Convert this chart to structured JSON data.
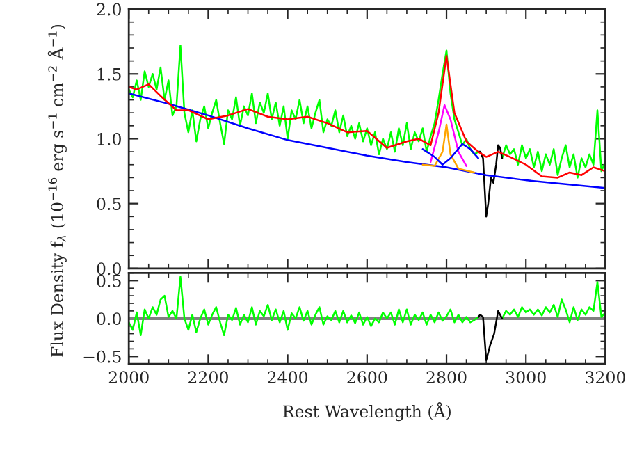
{
  "chart_data": [
    {
      "type": "line",
      "ylabel": "Flux Density f$_{λ}$ (10$^{−16}$ erg s$^{−1}$ cm$^{−2}$ Å$^{−1}$)",
      "xlim": [
        2000,
        3200
      ],
      "xticks": [
        2000,
        2200,
        2400,
        2600,
        2800,
        3000,
        3200
      ],
      "ylim": [
        0,
        2
      ],
      "yticks": [
        {
          "value": 0,
          "label": "0.0"
        },
        {
          "value": 0.5,
          "label": "0.5"
        },
        {
          "value": 1,
          "label": "1.0"
        },
        {
          "value": 1.5,
          "label": "1.5"
        },
        {
          "value": 2,
          "label": "2.0"
        }
      ],
      "tick_labels": "y",
      "grid": false,
      "legend": false,
      "series": [
        {
          "color": "#00ff00",
          "x": [
            2000,
            2010,
            2020,
            2030,
            2040,
            2050,
            2060,
            2070,
            2080,
            2090,
            2100,
            2110,
            2120,
            2130,
            2140,
            2150,
            2160,
            2170,
            2180,
            2190,
            2200,
            2210,
            2220,
            2230,
            2240,
            2250,
            2260,
            2270,
            2280,
            2290,
            2300,
            2310,
            2320,
            2330,
            2340,
            2350,
            2360,
            2370,
            2380,
            2390,
            2400,
            2410,
            2420,
            2430,
            2440,
            2450,
            2460,
            2470,
            2480,
            2490,
            2500,
            2510,
            2520,
            2530,
            2540,
            2550,
            2560,
            2570,
            2580,
            2590,
            2600,
            2610,
            2620,
            2630,
            2640,
            2650,
            2660,
            2670,
            2680,
            2690,
            2700,
            2710,
            2720,
            2730,
            2740,
            2750,
            2760,
            2770,
            2780,
            2790,
            2800,
            2810,
            2820,
            2830,
            2840,
            2850,
            2860,
            2870,
            2880
          ],
          "values": [
            1.38,
            1.32,
            1.45,
            1.3,
            1.52,
            1.4,
            1.5,
            1.38,
            1.55,
            1.3,
            1.45,
            1.18,
            1.25,
            1.72,
            1.2,
            1.05,
            1.22,
            0.98,
            1.15,
            1.25,
            1.08,
            1.2,
            1.3,
            1.12,
            0.96,
            1.22,
            1.15,
            1.32,
            1.1,
            1.25,
            1.18,
            1.35,
            1.12,
            1.28,
            1.2,
            1.35,
            1.15,
            1.28,
            1.1,
            1.25,
            1.0,
            1.22,
            1.15,
            1.3,
            1.12,
            1.25,
            1.08,
            1.2,
            1.3,
            1.05,
            1.15,
            1.1,
            1.22,
            1.05,
            1.18,
            1.02,
            1.1,
            1.0,
            1.12,
            0.98,
            1.08,
            0.95,
            1.05,
            0.88,
            1.0,
            0.92,
            1.05,
            0.9,
            1.08,
            0.95,
            1.12,
            0.92,
            1.05,
            0.98,
            1.08,
            0.9,
            1.02,
            1.12,
            1.3,
            1.5,
            1.68,
            1.35,
            1.15,
            1.05,
            0.95,
            1.0,
            0.92,
            0.88,
            0.9
          ]
        },
        {
          "color": "#00ff00",
          "x": [
            2940,
            2950,
            2960,
            2970,
            2980,
            2990,
            3000,
            3010,
            3020,
            3030,
            3040,
            3050,
            3060,
            3070,
            3080,
            3090,
            3100,
            3110,
            3120,
            3130,
            3140,
            3150,
            3160,
            3170,
            3180,
            3190,
            3200
          ],
          "values": [
            0.85,
            0.95,
            0.88,
            0.92,
            0.8,
            0.95,
            0.85,
            0.92,
            0.78,
            0.9,
            0.75,
            0.88,
            0.8,
            0.92,
            0.72,
            0.85,
            0.95,
            0.78,
            0.88,
            0.7,
            0.85,
            0.78,
            0.88,
            0.8,
            1.22,
            0.75,
            0.82
          ]
        },
        {
          "color": "#000000",
          "x": [
            2880,
            2885,
            2892,
            2900,
            2905,
            2912,
            2918,
            2925,
            2930,
            2935,
            2940
          ],
          "values": [
            0.9,
            0.9,
            0.85,
            0.4,
            0.5,
            0.7,
            0.66,
            0.8,
            0.95,
            0.93,
            0.85
          ]
        },
        {
          "color": "#0000ff",
          "x": [
            2000,
            2100,
            2200,
            2300,
            2400,
            2500,
            2600,
            2700,
            2800,
            2900,
            3000,
            3100,
            3200
          ],
          "values": [
            1.35,
            1.27,
            1.18,
            1.08,
            0.99,
            0.93,
            0.87,
            0.82,
            0.78,
            0.72,
            0.68,
            0.65,
            0.62
          ]
        },
        {
          "color": "#ffa500",
          "x": [
            2740,
            2770,
            2790,
            2800,
            2810,
            2830,
            2870
          ],
          "values": [
            0.8,
            0.79,
            0.9,
            1.11,
            0.88,
            0.77,
            0.74
          ]
        },
        {
          "color": "#ff00ff",
          "x": [
            2760,
            2780,
            2795,
            2810,
            2830,
            2850
          ],
          "values": [
            0.82,
            1.05,
            1.26,
            1.15,
            0.9,
            0.79
          ]
        },
        {
          "color": "#0000ff",
          "x": [
            2740,
            2770,
            2790,
            2810,
            2840,
            2860,
            2880
          ],
          "values": [
            0.92,
            0.86,
            0.8,
            0.85,
            0.96,
            0.92,
            0.85
          ]
        },
        {
          "color": "#ff0000",
          "x": [
            2000,
            2020,
            2050,
            2080,
            2120,
            2150,
            2200,
            2250,
            2300,
            2350,
            2400,
            2450,
            2500,
            2550,
            2600,
            2650,
            2700,
            2730,
            2760,
            2780,
            2800,
            2820,
            2850,
            2880,
            2900,
            2930,
            2960,
            3000,
            3040,
            3080,
            3110,
            3140,
            3170,
            3200
          ],
          "values": [
            1.4,
            1.38,
            1.42,
            1.33,
            1.22,
            1.22,
            1.15,
            1.18,
            1.23,
            1.17,
            1.15,
            1.17,
            1.12,
            1.05,
            1.06,
            0.93,
            0.98,
            1.0,
            0.95,
            1.2,
            1.64,
            1.2,
            0.98,
            0.9,
            0.86,
            0.9,
            0.86,
            0.8,
            0.71,
            0.7,
            0.74,
            0.72,
            0.78,
            0.75
          ]
        }
      ]
    },
    {
      "type": "line",
      "xlabel": "Rest Wavelength (Å)",
      "xlim": [
        2000,
        3200
      ],
      "xticks": [
        2000,
        2200,
        2400,
        2600,
        2800,
        3000,
        3200
      ],
      "ylim": [
        -0.6,
        0.6
      ],
      "yticks": [
        {
          "value": -0.5,
          "label": "−0.5"
        },
        {
          "value": 0,
          "label": "0.0"
        },
        {
          "value": 0.5,
          "label": "0.5"
        }
      ],
      "grid": false,
      "legend": false,
      "ref_lines": [
        {
          "axis": "y",
          "value": 0,
          "color": "#808080"
        }
      ],
      "series": [
        {
          "color": "#00ff00",
          "x": [
            2000,
            2010,
            2020,
            2030,
            2040,
            2050,
            2060,
            2070,
            2080,
            2090,
            2100,
            2110,
            2120,
            2130,
            2140,
            2150,
            2160,
            2170,
            2180,
            2190,
            2200,
            2210,
            2220,
            2230,
            2240,
            2250,
            2260,
            2270,
            2280,
            2290,
            2300,
            2310,
            2320,
            2330,
            2340,
            2350,
            2360,
            2370,
            2380,
            2390,
            2400,
            2410,
            2420,
            2430,
            2440,
            2450,
            2460,
            2470,
            2480,
            2490,
            2500,
            2510,
            2520,
            2530,
            2540,
            2550,
            2560,
            2570,
            2580,
            2590,
            2600,
            2610,
            2620,
            2630,
            2640,
            2650,
            2660,
            2670,
            2680,
            2690,
            2700,
            2710,
            2720,
            2730,
            2740,
            2750,
            2760,
            2770,
            2780,
            2790,
            2800,
            2810,
            2820,
            2830,
            2840,
            2850,
            2860,
            2870,
            2880
          ],
          "values": [
            -0.05,
            -0.15,
            0.08,
            -0.22,
            0.12,
            0.0,
            0.15,
            0.05,
            0.25,
            0.3,
            0.02,
            0.1,
            0.0,
            0.55,
            0.0,
            -0.15,
            0.05,
            -0.18,
            0.0,
            0.12,
            -0.08,
            0.05,
            0.15,
            -0.05,
            -0.22,
            0.05,
            -0.02,
            0.14,
            -0.08,
            0.05,
            -0.05,
            0.15,
            -0.08,
            0.1,
            0.03,
            0.18,
            -0.02,
            0.12,
            -0.05,
            0.1,
            -0.15,
            0.07,
            0.0,
            0.15,
            -0.03,
            0.1,
            -0.08,
            0.05,
            0.15,
            -0.08,
            0.03,
            -0.02,
            0.1,
            -0.05,
            0.1,
            -0.05,
            0.04,
            -0.06,
            0.08,
            -0.08,
            0.02,
            -0.1,
            0.0,
            -0.05,
            0.08,
            0.0,
            0.08,
            -0.08,
            0.12,
            -0.05,
            0.12,
            -0.08,
            0.05,
            -0.02,
            0.08,
            -0.08,
            0.05,
            -0.05,
            0.08,
            -0.03,
            0.03,
            0.12,
            -0.05,
            0.05,
            -0.05,
            0.02,
            -0.05,
            -0.02,
            0.02
          ]
        },
        {
          "color": "#00ff00",
          "x": [
            2940,
            2950,
            2960,
            2970,
            2980,
            2990,
            3000,
            3010,
            3020,
            3030,
            3040,
            3050,
            3060,
            3070,
            3080,
            3090,
            3100,
            3110,
            3120,
            3130,
            3140,
            3150,
            3160,
            3170,
            3180,
            3190,
            3200
          ],
          "values": [
            0.0,
            0.1,
            0.05,
            0.12,
            0.02,
            0.15,
            0.08,
            0.12,
            0.05,
            0.12,
            0.04,
            0.15,
            0.08,
            0.18,
            0.02,
            0.25,
            0.12,
            -0.05,
            0.15,
            -0.02,
            0.12,
            0.05,
            0.15,
            0.1,
            0.48,
            0.02,
            0.08
          ]
        },
        {
          "color": "#000000",
          "x": [
            2880,
            2885,
            2892,
            2900,
            2910,
            2920,
            2930,
            2935,
            2940
          ],
          "values": [
            0.02,
            0.05,
            0.02,
            -0.55,
            -0.35,
            -0.2,
            0.1,
            0.05,
            0.0
          ]
        }
      ]
    }
  ]
}
